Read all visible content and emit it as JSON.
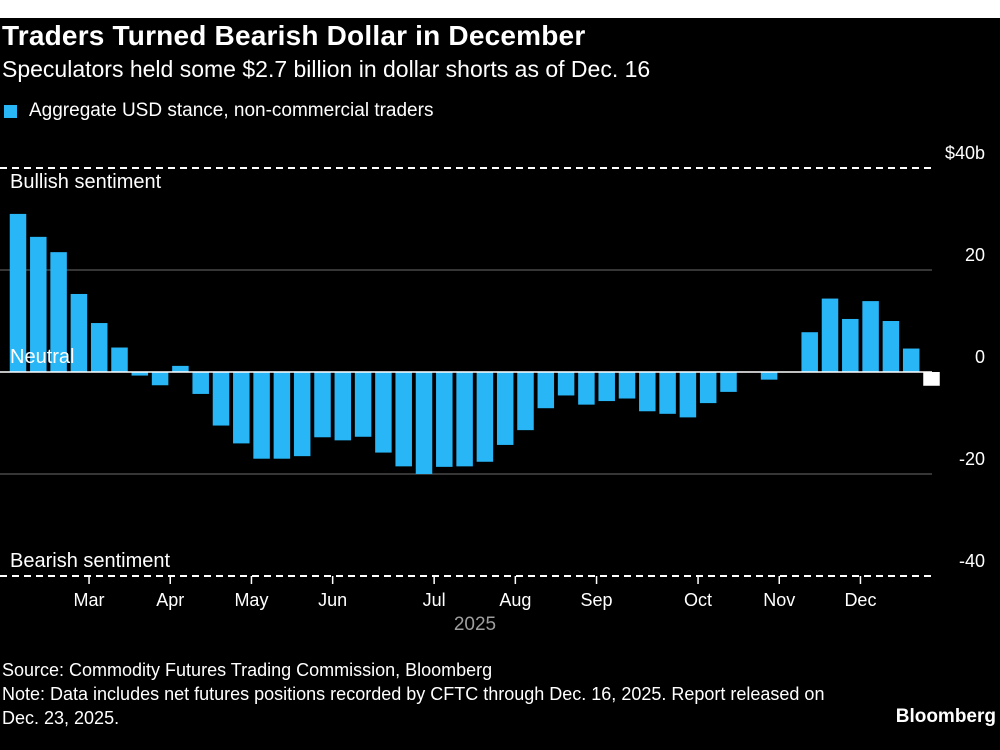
{
  "title": "Traders Turned Bearish Dollar in December",
  "subtitle": "Speculators held some $2.7 billion in dollar shorts as of Dec. 16",
  "legend": "Aggregate USD stance, non-commercial traders",
  "colors": {
    "bar": "#29b6f6",
    "latest": "#ffffff",
    "background": "#000000"
  },
  "annotations": {
    "bullish": "Bullish sentiment",
    "neutral": "Neutral",
    "bearish": "Bearish sentiment"
  },
  "source": "Source: Commodity Futures Trading Commission, Bloomberg",
  "note": "Note: Data includes net futures positions recorded by CFTC through Dec. 16, 2025. Report released on Dec. 23, 2025.",
  "brand": "Bloomberg",
  "chart_data": {
    "type": "bar",
    "xlabel": "2025",
    "ylim": [
      -40,
      40
    ],
    "y_ticks": [
      {
        "value": 40,
        "label": "$40b"
      },
      {
        "value": 20,
        "label": "20"
      },
      {
        "value": 0,
        "label": "0"
      },
      {
        "value": -20,
        "label": "-20"
      },
      {
        "value": -40,
        "label": "-40"
      }
    ],
    "x_ticks": [
      "Mar",
      "Apr",
      "May",
      "Jun",
      "Jul",
      "Aug",
      "Sep",
      "Oct",
      "Nov",
      "Dec"
    ],
    "x_tick_weeks": [
      3.5,
      7.5,
      11.5,
      15.5,
      20.5,
      24.5,
      28.5,
      33.5,
      37.5,
      41.5
    ],
    "values": [
      31,
      26.5,
      23.5,
      15.3,
      9.6,
      4.8,
      -0.7,
      -2.6,
      1.2,
      -4.3,
      -10.5,
      -14,
      -17,
      -17,
      -16.5,
      -12.8,
      -13.4,
      -12.7,
      -15.8,
      -18.5,
      -20,
      -18.6,
      -18.5,
      -17.6,
      -14.3,
      -11.4,
      -7.1,
      -4.6,
      -6.4,
      -5.7,
      -5.2,
      -7.7,
      -8.2,
      -8.9,
      -6.1,
      -3.9,
      0,
      -1.5,
      0,
      7.8,
      14.4,
      10.4,
      13.9,
      10,
      4.6,
      -2.7
    ],
    "latest_index": 45
  }
}
